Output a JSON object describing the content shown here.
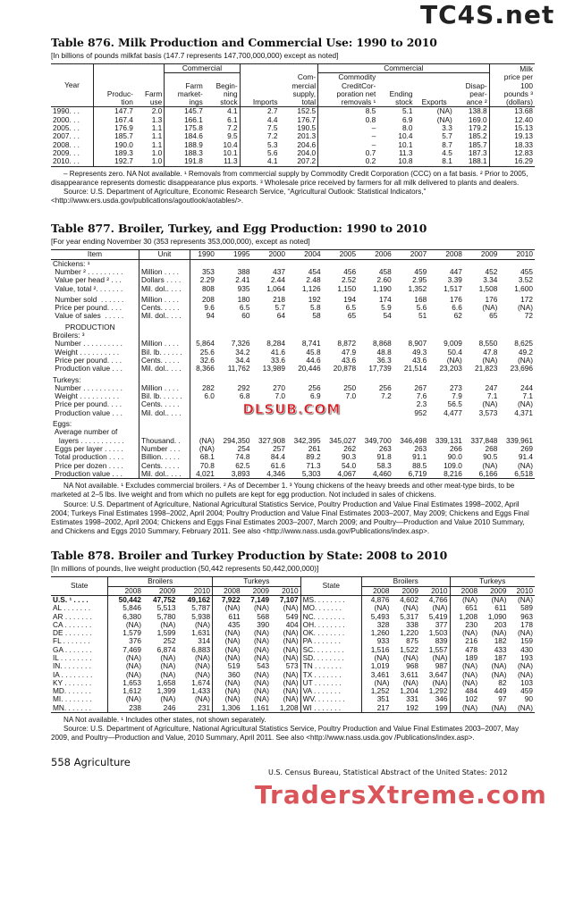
{
  "watermarks": {
    "top": "TC4S.net",
    "middle": "DLSUB.COM",
    "bottom": "TradersXtreme.com"
  },
  "t876": {
    "title": "Table 876. Milk Production and Commercial Use: 1990 to 2010",
    "subtitle": "[In billions of pounds milkfat basis (147.7 represents 147,700,000,000) except as noted]",
    "headers": {
      "year": "Year",
      "production": "Produc-\ntion",
      "farm_use": "Farm\nuse",
      "commercial1": "Commercial",
      "farm_marketings": "Farm\nmarket-\nings",
      "beginning_stock": "Begin-\nning\nstock",
      "imports": "Imports",
      "supply": "Com-\nmercial\nsupply,\ntotal",
      "commercial2": "Commercial",
      "ccc": "Commodity\nCreditCor-\nporation net\nremovals ¹",
      "ending_stock": "Ending\nstock",
      "exports": "Exports",
      "disappearance": "Disap-\npear-\nance ²",
      "price": "Milk\nprice per\n100\npounds ³\n(dollars)"
    },
    "rows": [
      [
        "1990. . .",
        "147.7",
        "2.0",
        "145.7",
        "4.1",
        "2.7",
        "152.5",
        "8.5",
        "5.1",
        "(NA)",
        "138.8",
        "13.68"
      ],
      [
        "2000. . .",
        "167.4",
        "1.3",
        "166.1",
        "6.1",
        "4.4",
        "176.7",
        "0.8",
        "6.9",
        "(NA)",
        "169.0",
        "12.40"
      ],
      [
        "2005. . .",
        "176.9",
        "1.1",
        "175.8",
        "7.2",
        "7.5",
        "190.5",
        "–",
        "8.0",
        "3.3",
        "179.2",
        "15.13"
      ],
      [
        "2007. . .",
        "185.7",
        "1.1",
        "184.6",
        "9.5",
        "7.2",
        "201.3",
        "–",
        "10.4",
        "5.7",
        "185.2",
        "19.13"
      ],
      [
        "2008. . .",
        "190.0",
        "1.1",
        "188.9",
        "10.4",
        "5.3",
        "204.6",
        "–",
        "10.1",
        "8.7",
        "185.7",
        "18.33"
      ],
      [
        "2009. . .",
        "189.3",
        "1.0",
        "188.3",
        "10.1",
        "5.6",
        "204.0",
        "0.7",
        "11.3",
        "4.5",
        "187.3",
        "12.83"
      ],
      [
        "2010. . .",
        "192.7",
        "1.0",
        "191.8",
        "11.3",
        "4.1",
        "207.2",
        "0.2",
        "10.8",
        "8.1",
        "188.1",
        "16.29"
      ]
    ],
    "notes": "– Represents zero. NA Not available. ¹ Removals from commercial supply by Commodity Credit Corporation (CCC) on a fat basis. ² Prior to 2005, disappearance represents domestic disappearance plus exports. ³ Wholesale price received by farmers for all milk delivered to plants and dealers.",
    "source": "Source: U.S. Department of Agriculture, Economic Research Service, “Agricultural Outlook: Statistical Indicators,” <http://www.ers.usda.gov/publications/agoutlook/aotables/>."
  },
  "t877": {
    "title": "Table 877. Broiler, Turkey, and Egg Production: 1990 to 2010",
    "subtitle": "[For year ending November 30 (353 represents 353,000,000), except as noted]",
    "item_header": "Item",
    "unit_header": "Unit",
    "years": [
      "1990",
      "1995",
      "2000",
      "2004",
      "2005",
      "2006",
      "2007",
      "2008",
      "2009",
      "2010"
    ],
    "rows": [
      {
        "label": "Chickens: ¹",
        "section": true
      },
      {
        "label": " Number ² . . . . . . . . .",
        "unit": "Million  . . . .",
        "v": [
          "353",
          "388",
          "437",
          "454",
          "456",
          "458",
          "459",
          "447",
          "452",
          "455"
        ]
      },
      {
        "label": " Value per head ² . . .",
        "unit": "Dollars . . . .",
        "v": [
          "2.29",
          "2.41",
          "2.44",
          "2.48",
          "2.52",
          "2.60",
          "2.95",
          "3.39",
          "3.34",
          "3.52"
        ]
      },
      {
        "label": " Value, total ². . . . . . .",
        "unit": "Mil. dol.. . . .",
        "v": [
          "808",
          "935",
          "1,064",
          "1,126",
          "1,150",
          "1,190",
          "1,352",
          "1,517",
          "1,508",
          "1,600"
        ]
      },
      {
        "label": " Number sold  . . . . . .",
        "unit": "Million  . . . .",
        "v": [
          "208",
          "180",
          "218",
          "192",
          "194",
          "174",
          "168",
          "176",
          "176",
          "172"
        ],
        "gap": true
      },
      {
        "label": " Price per pound. . . .",
        "unit": "Cents. . . . .",
        "v": [
          "9.6",
          "6.5",
          "5.7",
          "5.8",
          "6.5",
          "5.9",
          "5.6",
          "6.6",
          "(NA)",
          "(NA)"
        ]
      },
      {
        "label": " Value of sales  . . . . .",
        "unit": "Mil. dol.. . . .",
        "v": [
          "94",
          "60",
          "64",
          "58",
          "65",
          "54",
          "51",
          "62",
          "65",
          "72"
        ]
      },
      {
        "label": "      PRODUCTION",
        "section": true,
        "gap": true
      },
      {
        "label": "Broilers: ³",
        "section": true
      },
      {
        "label": " Number . . . . . . . . . .",
        "unit": "Million  . . . .",
        "v": [
          "5,864",
          "7,326",
          "8,284",
          "8,741",
          "8,872",
          "8,868",
          "8,907",
          "9,009",
          "8,550",
          "8,625"
        ]
      },
      {
        "label": " Weight . . . . . . . . . .",
        "unit": "Bil. lb. . . . . .",
        "v": [
          "25.6",
          "34.2",
          "41.6",
          "45.8",
          "47.9",
          "48.8",
          "49.3",
          "50.4",
          "47.8",
          "49.2"
        ]
      },
      {
        "label": " Price per pound. . . .",
        "unit": "Cents. . . . .",
        "v": [
          "32.6",
          "34.4",
          "33.6",
          "44.6",
          "43.6",
          "36.3",
          "43.6",
          "(NA)",
          "(NA)",
          "(NA)"
        ]
      },
      {
        "label": " Production value . . .",
        "unit": "Mil. dol.. . . .",
        "v": [
          "8,366",
          "11,762",
          "13,989",
          "20,446",
          "20,878",
          "17,739",
          "21,514",
          "23,203",
          "21,823",
          "23,696"
        ]
      },
      {
        "label": "Turkeys:",
        "section": true,
        "gap": true
      },
      {
        "label": " Number . . . . . . . . . .",
        "unit": "Million  . . . .",
        "v": [
          "282",
          "292",
          "270",
          "256",
          "250",
          "256",
          "267",
          "273",
          "247",
          "244"
        ]
      },
      {
        "label": " Weight . . . . . . . . . .",
        "unit": "Bil. lb. . . . . .",
        "v": [
          "6.0",
          "6.8",
          "7.0",
          "6.9",
          "7.0",
          "7.2",
          "7.6",
          "7.9",
          "7.1",
          "7.1"
        ]
      },
      {
        "label": " Price per pound. . . .",
        "unit": "Cents. . . . .",
        "v": [
          "",
          "",
          "",
          "",
          "",
          "",
          "2.3",
          "56.5",
          "(NA)",
          "(NA)"
        ]
      },
      {
        "label": " Production value . . .",
        "unit": "Mil. dol.. . . .",
        "v": [
          "",
          "",
          "",
          "",
          "",
          "",
          "952",
          "4,477",
          "3,573",
          "4,371"
        ]
      },
      {
        "label": "Eggs:",
        "section": true,
        "gap": true
      },
      {
        "label": " Average number of",
        "section": true
      },
      {
        "label": "   layers . . . . . . . . . . .",
        "unit": "Thousand. .",
        "v": [
          "(NA)",
          "294,350",
          "327,908",
          "342,395",
          "345,027",
          "349,700",
          "346,498",
          "339,131",
          "337,848",
          "339,961"
        ]
      },
      {
        "label": " Eggs per layer . . . . .",
        "unit": "Number . . .",
        "v": [
          "(NA)",
          "254",
          "257",
          "261",
          "262",
          "263",
          "263",
          "266",
          "268",
          "269"
        ]
      },
      {
        "label": " Total production . . . .",
        "unit": "Billion. . . . .",
        "v": [
          "68.1",
          "74.8",
          "84.4",
          "89.2",
          "90.3",
          "91.8",
          "91.1",
          "90.0",
          "90.5",
          "91.4"
        ]
      },
      {
        "label": " Price per dozen . . . .",
        "unit": "Cents. . . . .",
        "v": [
          "70.8",
          "62.5",
          "61.6",
          "71.3",
          "54.0",
          "58.3",
          "88.5",
          "109.0",
          "(NA)",
          "(NA)"
        ]
      },
      {
        "label": " Production value . . .",
        "unit": "Mil. dol.. . . .",
        "v": [
          "4,021",
          "3,893",
          "4,346",
          "5,303",
          "4,067",
          "4,460",
          "6,719",
          "8,216",
          "6,166",
          "6,518"
        ]
      }
    ],
    "notes": "NA Not available. ¹ Excludes commercial broilers. ² As of December 1. ³ Young chickens of the heavy breeds and other meat-type birds, to be marketed at 2–5 lbs. live weight and from which no pullets are kept for egg production. Not included in sales of chickens.",
    "source": "Source: U.S. Department of Agriculture, National Agricultural Statistics Service, Poultry Production and Value Final Estimates 1998–2002, April 2004; Turkeys Final Estimates 1998–2002, April 2004; Poultry Production and Value Final Estimates 2003–2007, May 2009; Chickens and Eggs Final Estimates 1998–2002, April 2004; Chickens and Eggs Final Estimates 2003–2007, March 2009; and Poultry—Production and Value 2010 Summary, and Chickens and Eggs 2010 Summary, February 2011. See also <http://www.nass.usda.gov/Publications/index.asp>."
  },
  "t878": {
    "title": "Table 878. Broiler and Turkey Production by State: 2008 to 2010",
    "subtitle": "[In millions of pounds, live weight production (50,442 represents 50,442,000,000)]",
    "state_header": "State",
    "broilers_header": "Broilers",
    "turkeys_header": "Turkeys",
    "years": [
      "2008",
      "2009",
      "2010"
    ],
    "left": [
      [
        "U.S. ¹ . . . .",
        "50,442",
        "47,752",
        "49,162",
        "7,922",
        "7,149",
        "7,107"
      ],
      [
        "AL . . . . . . .",
        "5,846",
        "5,513",
        "5,787",
        "(NA)",
        "(NA)",
        "(NA)"
      ],
      [
        "AR . . . . . . .",
        "6,380",
        "5,780",
        "5,938",
        "611",
        "568",
        "549"
      ],
      [
        "CA . . . . . . .",
        "(NA)",
        "(NA)",
        "(NA)",
        "435",
        "390",
        "404"
      ],
      [
        "DE . . . . . . .",
        "1,579",
        "1,599",
        "1,631",
        "(NA)",
        "(NA)",
        "(NA)"
      ],
      [
        "FL . . . . . . .",
        "376",
        "252",
        "314",
        "(NA)",
        "(NA)",
        "(NA)"
      ],
      [
        "GA . . . . . . .",
        "7,469",
        "6,874",
        "6,883",
        "(NA)",
        "(NA)",
        "(NA)"
      ],
      [
        "IL . . . . . . . .",
        "(NA)",
        "(NA)",
        "(NA)",
        "(NA)",
        "(NA)",
        "(NA)"
      ],
      [
        "IN. . . . . . . .",
        "(NA)",
        "(NA)",
        "(NA)",
        "519",
        "543",
        "573"
      ],
      [
        "IA . . . . . . . .",
        "(NA)",
        "(NA)",
        "(NA)",
        "360",
        "(NA)",
        "(NA)"
      ],
      [
        "KY . . . . . . .",
        "1,653",
        "1,658",
        "1,674",
        "(NA)",
        "(NA)",
        "(NA)"
      ],
      [
        "MD. . . . . . .",
        "1,612",
        "1,399",
        "1,433",
        "(NA)",
        "(NA)",
        "(NA)"
      ],
      [
        "MI. . . . . . . .",
        "(NA)",
        "(NA)",
        "(NA)",
        "(NA)",
        "(NA)",
        "(NA)"
      ],
      [
        "MN. . . . . . .",
        "238",
        "246",
        "231",
        "1,306",
        "1,161",
        "1,208"
      ]
    ],
    "right": [
      [
        "MS. . . . . . . .",
        "4,876",
        "4,602",
        "4,766",
        "(NA)",
        "(NA)",
        "(NA)"
      ],
      [
        "MO. . . . . . .",
        "(NA)",
        "(NA)",
        "(NA)",
        "651",
        "611",
        "589"
      ],
      [
        "NC. . . . . . . .",
        "5,493",
        "5,317",
        "5,419",
        "1,208",
        "1,090",
        "963"
      ],
      [
        "OH. . . . . . . .",
        "328",
        "338",
        "377",
        "230",
        "203",
        "178"
      ],
      [
        "OK. . . . . . . .",
        "1,260",
        "1,220",
        "1,503",
        "(NA)",
        "(NA)",
        "(NA)"
      ],
      [
        "PA  . . . . . . .",
        "933",
        "875",
        "839",
        "216",
        "182",
        "159"
      ],
      [
        "SC. . . . . . . .",
        "1,516",
        "1,522",
        "1,557",
        "478",
        "433",
        "430"
      ],
      [
        "SD. . . . . . . .",
        "(NA)",
        "(NA)",
        "(NA)",
        "189",
        "187",
        "193"
      ],
      [
        "TN  . . . . . . .",
        "1,019",
        "968",
        "987",
        "(NA)",
        "(NA)",
        "(NA)"
      ],
      [
        "TX  . . . . . . .",
        "3,461",
        "3,611",
        "3,647",
        "(NA)",
        "(NA)",
        "(NA)"
      ],
      [
        "UT  . . . . . . .",
        "(NA)",
        "(NA)",
        "(NA)",
        "(NA)",
        "82",
        "103"
      ],
      [
        "VA  . . . . . . .",
        "1,252",
        "1,204",
        "1,292",
        "484",
        "449",
        "459"
      ],
      [
        "WV. . . . . . . .",
        "351",
        "331",
        "346",
        "102",
        "97",
        "90"
      ],
      [
        "WI  . . . . . . .",
        "217",
        "192",
        "199",
        "(NA)",
        "(NA)",
        "(NA)"
      ]
    ],
    "notes": "NA Not available. ¹ Includes other states, not shown separately.",
    "source": "Source: U.S. Department of Agriculture, National Agricultural Statistics Service, Poultry Production and Value Final Estimates 2003–2007, May 2009, and Poultry—Production and Value, 2010 Summary, April 2011. See also <http://www.nass.usda.gov /Publications/index.asp>."
  },
  "footer": {
    "page": "558  Agriculture",
    "publication": "U.S. Census Bureau, Statistical Abstract of the United States: 2012"
  }
}
